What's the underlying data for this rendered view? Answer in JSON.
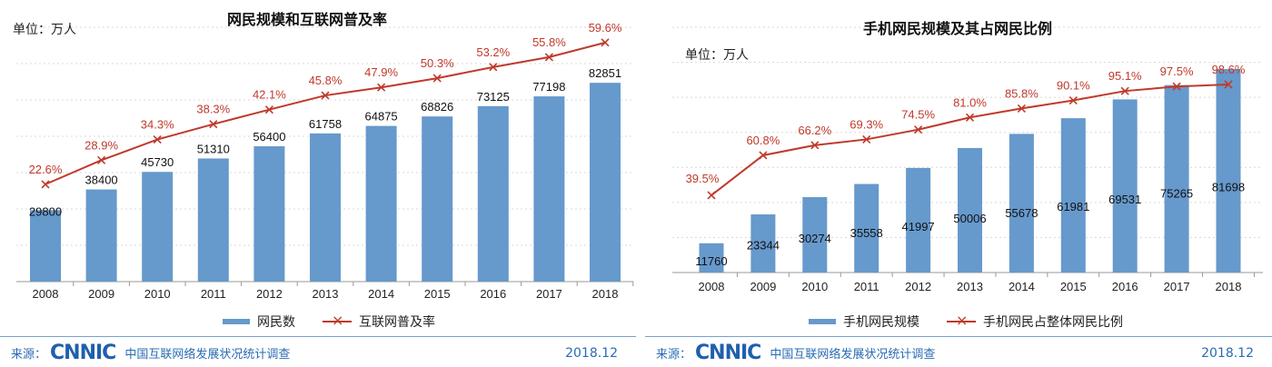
{
  "chart_data": [
    {
      "type": "bar+line",
      "title": "网民规模和互联网普及率",
      "unit_label": "单位：万人",
      "categories": [
        "2008",
        "2009",
        "2010",
        "2011",
        "2012",
        "2013",
        "2014",
        "2015",
        "2016",
        "2017",
        "2018"
      ],
      "series": [
        {
          "name": "网民数",
          "type": "bar",
          "values": [
            29800,
            38400,
            45730,
            51310,
            56400,
            61758,
            64875,
            68826,
            73125,
            77198,
            82851
          ],
          "labels": [
            "29800",
            "38400",
            "45730",
            "51310",
            "56400",
            "61758",
            "64875",
            "68826",
            "73125",
            "77198",
            "82851"
          ]
        },
        {
          "name": "互联网普及率",
          "type": "line",
          "values": [
            22.6,
            28.9,
            34.3,
            38.3,
            42.1,
            45.8,
            47.9,
            50.3,
            53.2,
            55.8,
            59.6
          ],
          "labels": [
            "22.6%",
            "28.9%",
            "34.3%",
            "38.3%",
            "42.1%",
            "45.8%",
            "47.9%",
            "50.3%",
            "53.2%",
            "55.8%",
            "59.6%"
          ]
        }
      ],
      "ylim": [
        0,
        106000
      ],
      "y2lim": [
        -2.8,
        63.6
      ],
      "grid": true,
      "legend": "bottom"
    },
    {
      "type": "bar+line",
      "title": "手机网民规模及其占网民比例",
      "unit_label": "单位：万人",
      "categories": [
        "2008",
        "2009",
        "2010",
        "2011",
        "2012",
        "2013",
        "2014",
        "2015",
        "2016",
        "2017",
        "2018"
      ],
      "series": [
        {
          "name": "手机网民规模",
          "type": "bar",
          "values": [
            11760,
            23344,
            30274,
            35558,
            41997,
            50006,
            55678,
            61981,
            69531,
            75265,
            81698
          ],
          "labels": [
            "11760",
            "23344",
            "30274",
            "35558",
            "41997",
            "50006",
            "55678",
            "61981",
            "69531",
            "75265",
            "81698"
          ]
        },
        {
          "name": "手机网民占整体网民比例",
          "type": "line",
          "values": [
            39.5,
            60.8,
            66.2,
            69.3,
            74.5,
            81.0,
            85.8,
            90.1,
            95.1,
            97.5,
            98.6
          ],
          "labels": [
            "39.5%",
            "60.8%",
            "66.2%",
            "69.3%",
            "74.5%",
            "81.0%",
            "85.8%",
            "90.1%",
            "95.1%",
            "97.5%",
            "98.6%"
          ]
        }
      ],
      "ylim": [
        0,
        98500
      ],
      "y2lim": [
        -1.7,
        129.1
      ],
      "grid": true,
      "legend": "bottom"
    }
  ],
  "footer": {
    "source_label": "来源：",
    "logo": "CNNIC",
    "survey": "中国互联网络发展状况统计调查",
    "date": "2018.12"
  },
  "colors": {
    "bar": "#6699cc",
    "line": "#c0392b",
    "label": "#c0392b",
    "footer": "#2a6bb5"
  }
}
